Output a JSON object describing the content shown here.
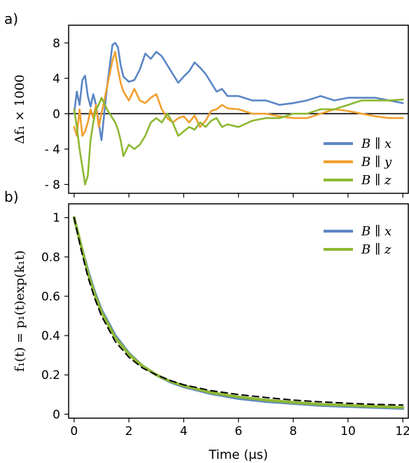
{
  "panel_a_label": "a)",
  "panel_b_label": "b)",
  "chart_data": [
    {
      "type": "line",
      "panel": "a",
      "ylabel": "Δf₁ × 1000",
      "xlim": [
        -0.2,
        12.2
      ],
      "ylim": [
        -9,
        10
      ],
      "yticks": [
        8,
        4,
        0,
        -4,
        -8
      ],
      "ytick_labels": [
        "8",
        "4",
        "0",
        "- 4",
        "- 8"
      ],
      "zero_line": true,
      "legend_position": "lower-right",
      "series": [
        {
          "name": "B ∥ x",
          "color": "#5b86c5",
          "x": [
            0,
            0.1,
            0.2,
            0.3,
            0.4,
            0.5,
            0.6,
            0.7,
            0.8,
            0.9,
            1.0,
            1.2,
            1.4,
            1.5,
            1.6,
            1.7,
            1.8,
            2.0,
            2.2,
            2.4,
            2.6,
            2.8,
            3.0,
            3.2,
            3.4,
            3.6,
            3.8,
            4.0,
            4.2,
            4.4,
            4.6,
            4.8,
            5.0,
            5.2,
            5.4,
            5.6,
            6.0,
            6.5,
            7.0,
            7.5,
            8.0,
            8.5,
            9.0,
            9.5,
            10.0,
            10.5,
            11.0,
            11.5,
            12.0
          ],
          "values": [
            0,
            2.5,
            1.0,
            3.8,
            4.3,
            2.0,
            0.8,
            2.2,
            1.0,
            -1.0,
            -3.0,
            3.0,
            7.8,
            8.0,
            7.5,
            5.5,
            4.2,
            3.6,
            3.8,
            5.0,
            6.8,
            6.2,
            7.0,
            6.5,
            5.5,
            4.5,
            3.5,
            4.2,
            4.8,
            5.8,
            5.2,
            4.5,
            3.5,
            2.5,
            2.8,
            2.0,
            2.0,
            1.5,
            1.5,
            1.0,
            1.2,
            1.5,
            2.0,
            1.5,
            1.8,
            1.8,
            1.8,
            1.5,
            1.2
          ]
        },
        {
          "name": "B ∥ y",
          "color": "#f0a030",
          "x": [
            0,
            0.1,
            0.2,
            0.3,
            0.4,
            0.5,
            0.6,
            0.7,
            0.8,
            0.9,
            1.0,
            1.2,
            1.4,
            1.5,
            1.6,
            1.7,
            1.8,
            2.0,
            2.2,
            2.4,
            2.6,
            2.8,
            3.0,
            3.2,
            3.4,
            3.6,
            3.8,
            4.0,
            4.2,
            4.4,
            4.6,
            4.8,
            5.0,
            5.2,
            5.4,
            5.6,
            6.0,
            6.5,
            7.0,
            7.5,
            8.0,
            8.5,
            9.0,
            9.5,
            10.0,
            10.5,
            11.0,
            11.5,
            12.0
          ],
          "values": [
            -1.5,
            -2.5,
            0.5,
            -2.5,
            -2.0,
            -1.0,
            0.5,
            -0.5,
            1.0,
            -1.5,
            0.0,
            3.0,
            6.0,
            7.0,
            5.0,
            3.5,
            2.5,
            1.5,
            2.8,
            1.5,
            1.2,
            1.8,
            2.2,
            0.5,
            -0.5,
            -1.0,
            -0.5,
            -0.3,
            -1.0,
            -0.2,
            -1.5,
            -0.8,
            0.3,
            0.5,
            1.0,
            0.6,
            0.5,
            0.0,
            0.0,
            -0.3,
            -0.5,
            -0.5,
            0.0,
            0.5,
            0.3,
            0.0,
            -0.3,
            -0.5,
            -0.5
          ]
        },
        {
          "name": "B ∥ z",
          "color": "#8db832",
          "x": [
            0,
            0.1,
            0.2,
            0.3,
            0.4,
            0.5,
            0.6,
            0.7,
            0.8,
            0.9,
            1.0,
            1.2,
            1.4,
            1.5,
            1.6,
            1.7,
            1.8,
            2.0,
            2.2,
            2.4,
            2.6,
            2.8,
            3.0,
            3.2,
            3.4,
            3.6,
            3.8,
            4.0,
            4.2,
            4.4,
            4.6,
            4.8,
            5.0,
            5.2,
            5.4,
            5.6,
            6.0,
            6.5,
            7.0,
            7.5,
            8.0,
            8.5,
            9.0,
            9.5,
            10.0,
            10.5,
            11.0,
            11.5,
            12.0
          ],
          "values": [
            0.5,
            -1.5,
            -4.0,
            -6.0,
            -8.0,
            -7.0,
            -3.0,
            -1.0,
            0.5,
            1.0,
            1.8,
            0.5,
            -0.5,
            -1.0,
            -1.8,
            -3.0,
            -4.8,
            -3.5,
            -4.0,
            -3.5,
            -2.5,
            -1.0,
            -0.5,
            -1.0,
            0.0,
            -1.0,
            -2.5,
            -2.0,
            -1.5,
            -1.8,
            -1.0,
            -1.5,
            -0.8,
            -0.5,
            -1.5,
            -1.2,
            -1.5,
            -0.8,
            -0.5,
            -0.5,
            0.0,
            0.0,
            0.5,
            0.5,
            1.0,
            1.5,
            1.5,
            1.5,
            1.6
          ]
        }
      ]
    },
    {
      "type": "line",
      "panel": "b",
      "ylabel": "f₁(t) = p₁(t)exp(k₁t)",
      "xlabel": "Time (μs)",
      "xlim": [
        -0.2,
        12.2
      ],
      "ylim": [
        -0.02,
        1.07
      ],
      "xticks": [
        0,
        2,
        4,
        6,
        8,
        10,
        12
      ],
      "xtick_labels": [
        "0",
        "2",
        "4",
        "6",
        "8",
        "10",
        "12"
      ],
      "yticks": [
        0,
        0.2,
        0.4,
        0.6,
        0.8,
        1
      ],
      "ytick_labels": [
        "0",
        "0.2",
        "0.4",
        "0.6",
        "0.8",
        "1"
      ],
      "legend_position": "upper-right",
      "series": [
        {
          "name": "B ∥ x",
          "color": "#5b86c5",
          "x": [
            0,
            0.25,
            0.5,
            0.75,
            1,
            1.5,
            2,
            2.5,
            3,
            3.5,
            4,
            5,
            6,
            7,
            8,
            9,
            10,
            11,
            12
          ],
          "values": [
            1.0,
            0.86,
            0.73,
            0.62,
            0.53,
            0.4,
            0.31,
            0.245,
            0.2,
            0.165,
            0.14,
            0.105,
            0.08,
            0.065,
            0.055,
            0.045,
            0.04,
            0.035,
            0.03
          ]
        },
        {
          "name": "B ∥ z",
          "color": "#8db832",
          "x": [
            0,
            0.25,
            0.5,
            0.75,
            1,
            1.5,
            2,
            2.5,
            3,
            3.5,
            4,
            5,
            6,
            7,
            8,
            9,
            10,
            11,
            12
          ],
          "values": [
            1.0,
            0.86,
            0.72,
            0.61,
            0.52,
            0.39,
            0.305,
            0.245,
            0.2,
            0.168,
            0.145,
            0.11,
            0.088,
            0.072,
            0.06,
            0.05,
            0.045,
            0.04,
            0.035
          ]
        },
        {
          "name": "",
          "color": "#000000",
          "dashed": true,
          "x": [
            0,
            0.25,
            0.5,
            0.75,
            1,
            1.5,
            2,
            2.5,
            3,
            3.5,
            4,
            5,
            6,
            7,
            8,
            9,
            10,
            11,
            12
          ],
          "values": [
            1.0,
            0.84,
            0.7,
            0.59,
            0.5,
            0.37,
            0.29,
            0.235,
            0.2,
            0.172,
            0.15,
            0.12,
            0.1,
            0.085,
            0.072,
            0.063,
            0.056,
            0.05,
            0.047
          ]
        }
      ]
    }
  ]
}
